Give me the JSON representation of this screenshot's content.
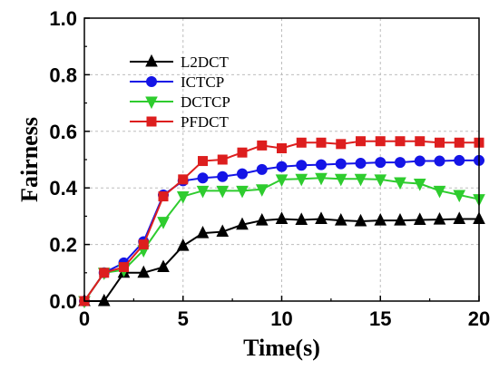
{
  "chart_data": {
    "type": "line",
    "title": "",
    "xlabel": "Time(s)",
    "ylabel": "Fairness",
    "xlim": [
      0,
      20
    ],
    "ylim": [
      0,
      1.0
    ],
    "xticks": [
      0,
      5,
      10,
      15,
      20
    ],
    "yticks": [
      0.0,
      0.2,
      0.4,
      0.6,
      0.8,
      1.0
    ],
    "ytick_labels": [
      "0.0",
      "0.2",
      "0.4",
      "0.6",
      "0.8",
      "1.0"
    ],
    "grid": true,
    "legend_position": "top-left",
    "x": [
      0,
      1,
      2,
      3,
      4,
      5,
      6,
      7,
      8,
      9,
      10,
      11,
      12,
      13,
      14,
      15,
      16,
      17,
      18,
      19,
      20
    ],
    "series": [
      {
        "name": "L2DCT",
        "color": "#000000",
        "marker": "triangle-up",
        "values": [
          0.0,
          0.0,
          0.1,
          0.1,
          0.12,
          0.195,
          0.24,
          0.245,
          0.27,
          0.285,
          0.29,
          0.287,
          0.29,
          0.285,
          0.282,
          0.285,
          0.285,
          0.287,
          0.288,
          0.29,
          0.29
        ]
      },
      {
        "name": "ICTCP",
        "color": "#1515e6",
        "marker": "circle",
        "values": [
          0.0,
          0.1,
          0.135,
          0.21,
          0.375,
          0.425,
          0.435,
          0.44,
          0.45,
          0.465,
          0.475,
          0.48,
          0.482,
          0.485,
          0.487,
          0.49,
          0.49,
          0.495,
          0.495,
          0.497,
          0.497
        ]
      },
      {
        "name": "DCTCP",
        "color": "#2ecc2e",
        "marker": "triangle-down",
        "values": [
          0.0,
          0.1,
          0.11,
          0.18,
          0.28,
          0.37,
          0.39,
          0.39,
          0.39,
          0.395,
          0.43,
          0.432,
          0.435,
          0.432,
          0.432,
          0.43,
          0.42,
          0.415,
          0.39,
          0.375,
          0.36
        ]
      },
      {
        "name": "PFDCT",
        "color": "#dd1e1e",
        "marker": "square",
        "values": [
          0.0,
          0.1,
          0.12,
          0.2,
          0.37,
          0.43,
          0.495,
          0.5,
          0.525,
          0.55,
          0.54,
          0.56,
          0.56,
          0.555,
          0.565,
          0.565,
          0.565,
          0.565,
          0.56,
          0.56,
          0.56
        ]
      }
    ]
  }
}
